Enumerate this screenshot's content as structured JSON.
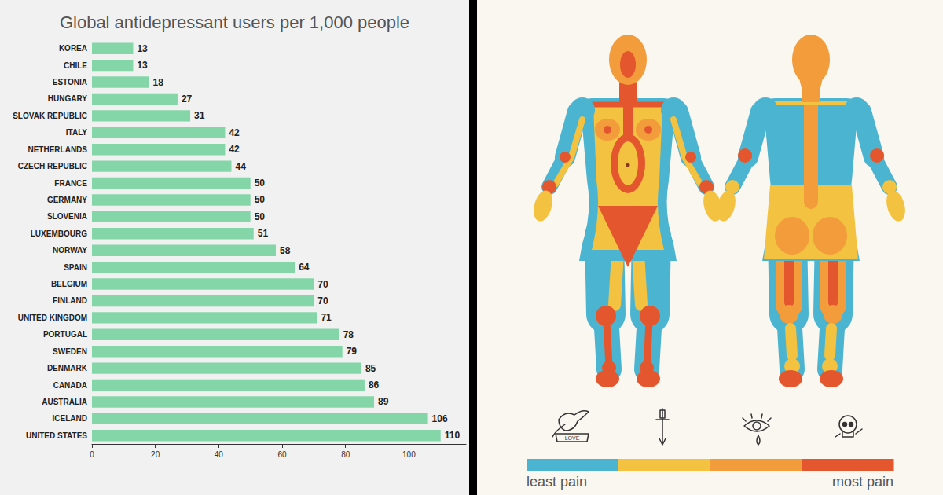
{
  "chart_data": {
    "type": "bar",
    "title": "Global antidepressant users per 1,000 people",
    "orientation": "horizontal",
    "categories": [
      "KOREA",
      "CHILE",
      "ESTONIA",
      "HUNGARY",
      "SLOVAK REPUBLIC",
      "ITALY",
      "NETHERLANDS",
      "CZECH REPUBLIC",
      "FRANCE",
      "GERMANY",
      "SLOVENIA",
      "LUXEMBOURG",
      "NORWAY",
      "SPAIN",
      "BELGIUM",
      "FINLAND",
      "UNITED KINGDOM",
      "PORTUGAL",
      "SWEDEN",
      "DENMARK",
      "CANADA",
      "AUSTRALIA",
      "ICELAND",
      "UNITED STATES"
    ],
    "values": [
      13,
      13,
      18,
      27,
      31,
      42,
      42,
      44,
      50,
      50,
      50,
      51,
      58,
      64,
      70,
      70,
      71,
      78,
      79,
      85,
      86,
      89,
      106,
      110
    ],
    "color": "#84d6a9",
    "xlim": [
      0,
      118
    ],
    "xticks": [
      0,
      20,
      40,
      60,
      80,
      100
    ],
    "grid": false,
    "data_labels": true
  },
  "diagram": {
    "scale": {
      "colors": [
        "#4bb4d0",
        "#f3c240",
        "#f39c3c",
        "#e4572e"
      ],
      "labels": [
        "least pain",
        "most pain"
      ]
    },
    "icon_text": "LOVE"
  }
}
